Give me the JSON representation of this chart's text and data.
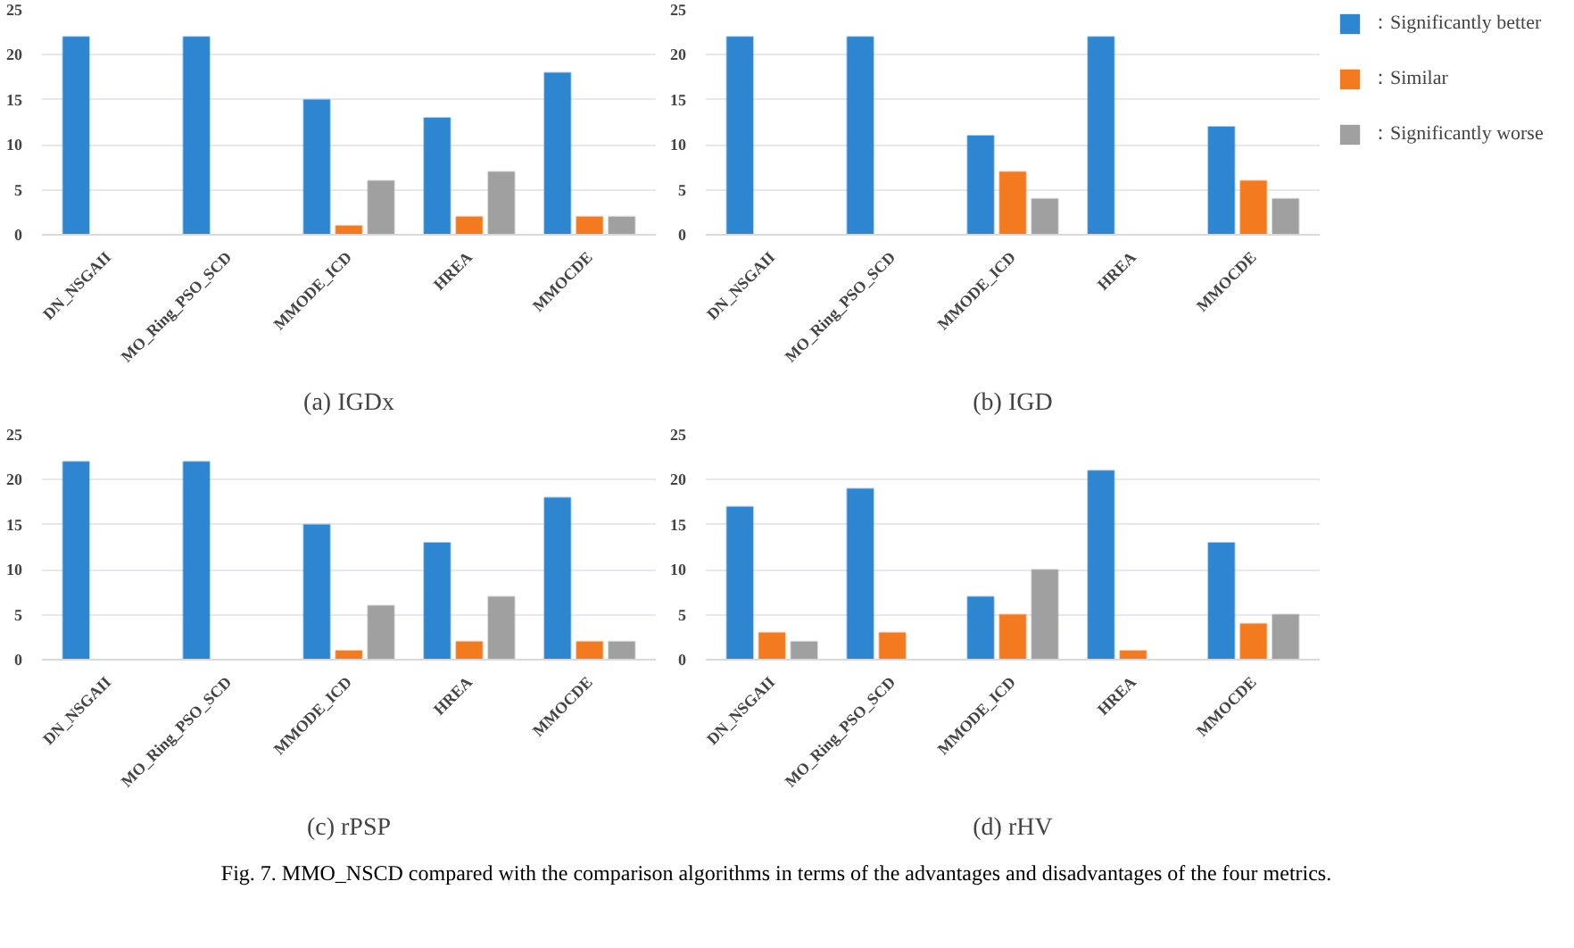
{
  "chart_data": [
    {
      "type": "bar",
      "title": "(a) IGDx",
      "categories": [
        "DN_NSGAII",
        "MO_Ring_PSO_SCD",
        "MMODE_ICD",
        "HREA",
        "MMOCDE"
      ],
      "ylim": [
        0,
        25
      ],
      "yticks": [
        0,
        5,
        10,
        15,
        20,
        25
      ],
      "grid": "y",
      "legend": false,
      "series": [
        {
          "color": "#2e86d0",
          "values": [
            22,
            22,
            15,
            13,
            18
          ]
        },
        {
          "color": "#f47a20",
          "values": [
            0,
            0,
            1,
            2,
            2
          ]
        },
        {
          "color": "#a0a0a0",
          "values": [
            0,
            0,
            6,
            7,
            2
          ]
        }
      ]
    },
    {
      "type": "bar",
      "title": "(b) IGD",
      "categories": [
        "DN_NSGAII",
        "MO_Ring_PSO_SCD",
        "MMODE_ICD",
        "HREA",
        "MMOCDE"
      ],
      "ylim": [
        0,
        25
      ],
      "yticks": [
        0,
        5,
        10,
        15,
        20,
        25
      ],
      "grid": "y",
      "legend": "right",
      "series": [
        {
          "name": "：Significantly better",
          "color": "#2e86d0",
          "values": [
            22,
            22,
            11,
            22,
            12
          ]
        },
        {
          "name": "：Similar",
          "color": "#f47a20",
          "values": [
            0,
            0,
            7,
            0,
            6
          ]
        },
        {
          "name": "：Significantly worse",
          "color": "#a0a0a0",
          "values": [
            0,
            0,
            4,
            0,
            4
          ]
        }
      ]
    },
    {
      "type": "bar",
      "title": "(c) rPSP",
      "categories": [
        "DN_NSGAII",
        "MO_Ring_PSO_SCD",
        "MMODE_ICD",
        "HREA",
        "MMOCDE"
      ],
      "ylim": [
        0,
        25
      ],
      "yticks": [
        0,
        5,
        10,
        15,
        20,
        25
      ],
      "grid": "y",
      "legend": false,
      "series": [
        {
          "color": "#2e86d0",
          "values": [
            22,
            22,
            15,
            13,
            18
          ]
        },
        {
          "color": "#f47a20",
          "values": [
            0,
            0,
            1,
            2,
            2
          ]
        },
        {
          "color": "#a0a0a0",
          "values": [
            0,
            0,
            6,
            7,
            2
          ]
        }
      ]
    },
    {
      "type": "bar",
      "title": "(d) rHV",
      "categories": [
        "DN_NSGAII",
        "MO_Ring_PSO_SCD",
        "MMODE_ICD",
        "HREA",
        "MMOCDE"
      ],
      "ylim": [
        0,
        25
      ],
      "yticks": [
        0,
        5,
        10,
        15,
        20,
        25
      ],
      "grid": "y",
      "legend": false,
      "annotations": [
        "Fig. 7. MMO_NSCD compared with the comparison algorithms in terms of the advantages and disadvantages of the four metrics."
      ],
      "series": [
        {
          "color": "#2e86d0",
          "values": [
            17,
            19,
            7,
            21,
            13
          ]
        },
        {
          "color": "#f47a20",
          "values": [
            3,
            3,
            5,
            1,
            4
          ]
        },
        {
          "color": "#a0a0a0",
          "values": [
            2,
            0,
            10,
            0,
            5
          ]
        }
      ]
    }
  ]
}
